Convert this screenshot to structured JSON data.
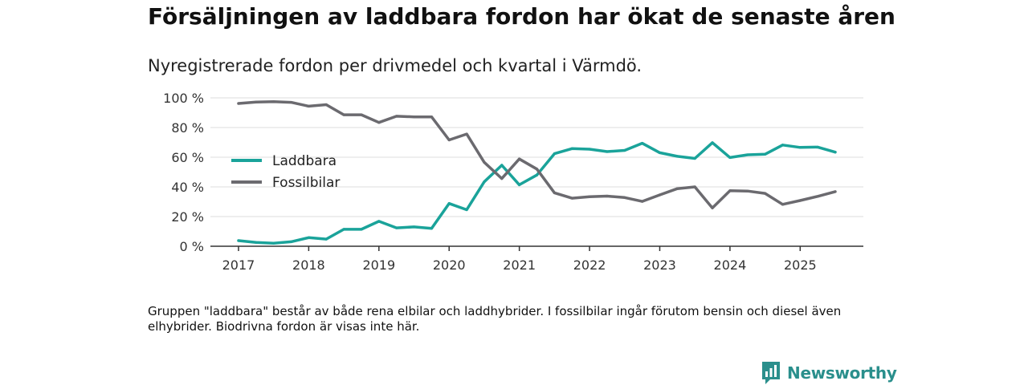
{
  "header": {
    "title": "Försäljningen av laddbara fordon har ökat de senaste åren",
    "subtitle": "Nyregistrerade fordon per drivmedel och kvartal i Värmdö."
  },
  "footer": {
    "note": "Gruppen \"laddbara\" består av både rena elbilar och laddhybrider. I fossilbilar ingår förutom bensin och diesel även elhybrider. Biodrivna fordon är visas inte här.",
    "brand": "Newsworthy"
  },
  "colors": {
    "laddbara": "#1aa39a",
    "fossil": "#6b6a6f",
    "brand": "#2a8f8c",
    "grid": "#dddddd",
    "axis": "#333333"
  },
  "chart_data": {
    "type": "line",
    "title": "Nyregistrerade fordon per drivmedel och kvartal i Värmdö.",
    "xlabel": "",
    "ylabel": "",
    "ylim": [
      0,
      100
    ],
    "yticks": [
      0,
      20,
      40,
      60,
      80,
      100
    ],
    "ytick_labels": [
      "0 %",
      "20 %",
      "40 %",
      "60 %",
      "80 %",
      "100 %"
    ],
    "xlim": [
      2016.6,
      2025.9
    ],
    "xticks": [
      2017,
      2018,
      2019,
      2020,
      2021,
      2022,
      2023,
      2024,
      2025
    ],
    "xtick_labels": [
      "2017",
      "2018",
      "2019",
      "2020",
      "2021",
      "2022",
      "2023",
      "2024",
      "2025"
    ],
    "grid": true,
    "legend_position": "left",
    "x": [
      2017.0,
      2017.25,
      2017.5,
      2017.75,
      2018.0,
      2018.25,
      2018.5,
      2018.75,
      2019.0,
      2019.25,
      2019.5,
      2019.75,
      2020.0,
      2020.25,
      2020.5,
      2020.75,
      2021.0,
      2021.25,
      2021.5,
      2021.75,
      2022.0,
      2022.25,
      2022.5,
      2022.75,
      2023.0,
      2023.25,
      2023.5,
      2023.75,
      2024.0,
      2024.25,
      2024.5,
      2024.75,
      2025.0,
      2025.25,
      2025.5
    ],
    "series": [
      {
        "name": "Laddbara",
        "color_key": "laddbara",
        "values": [
          3.8,
          2.6,
          2.0,
          3.0,
          5.8,
          4.8,
          11.4,
          11.4,
          16.8,
          12.4,
          13.0,
          12.0,
          28.8,
          24.6,
          43.4,
          54.6,
          41.4,
          48.0,
          62.4,
          65.8,
          65.4,
          63.8,
          64.6,
          69.4,
          63.0,
          60.6,
          59.2,
          69.8,
          59.8,
          61.6,
          62.0,
          68.2,
          66.6,
          66.8,
          63.4
        ]
      },
      {
        "name": "Fossilbilar",
        "color_key": "fossil",
        "values": [
          96.2,
          97.2,
          97.4,
          97.0,
          94.4,
          95.4,
          88.6,
          88.6,
          83.4,
          87.6,
          87.2,
          87.2,
          71.6,
          75.6,
          56.6,
          45.6,
          58.8,
          52.0,
          36.0,
          32.4,
          33.4,
          33.8,
          32.8,
          30.2,
          34.6,
          38.8,
          40.0,
          25.8,
          37.4,
          37.2,
          35.6,
          28.2,
          30.8,
          33.6,
          36.8
        ]
      }
    ]
  }
}
